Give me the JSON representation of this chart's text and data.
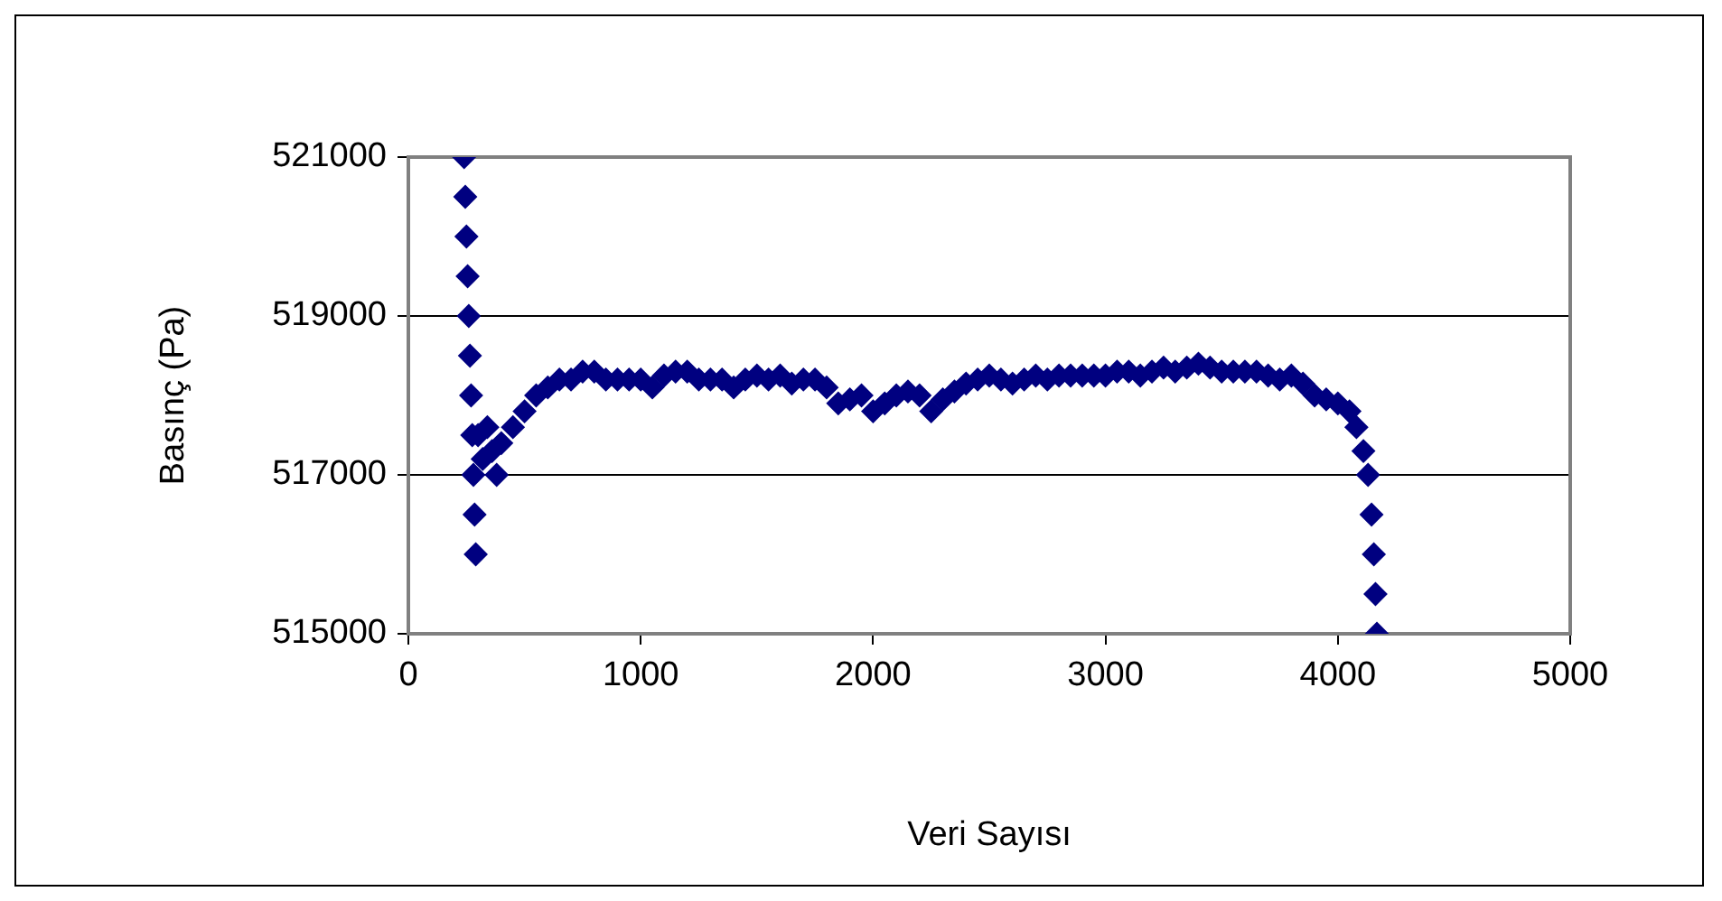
{
  "chart_data": {
    "type": "scatter",
    "xlabel": "Veri Sayısı",
    "ylabel": "Basınç (Pa)",
    "xlim": [
      0,
      5000
    ],
    "xticks": [
      0,
      1000,
      2000,
      3000,
      4000,
      5000
    ],
    "ylim": [
      515000,
      521000
    ],
    "yticks": [
      515000,
      517000,
      519000,
      521000
    ],
    "grid": "y",
    "legend": false,
    "marker": "diamond",
    "series": [
      {
        "color": "#000080",
        "x": [
          240,
          245,
          250,
          255,
          260,
          265,
          270,
          275,
          280,
          285,
          290,
          300,
          320,
          340,
          360,
          380,
          400,
          450,
          500,
          550,
          600,
          650,
          700,
          750,
          800,
          850,
          900,
          950,
          1000,
          1050,
          1100,
          1150,
          1200,
          1250,
          1300,
          1350,
          1400,
          1450,
          1500,
          1550,
          1600,
          1650,
          1700,
          1750,
          1800,
          1850,
          1900,
          1950,
          2000,
          2050,
          2100,
          2150,
          2200,
          2250,
          2300,
          2350,
          2400,
          2450,
          2500,
          2550,
          2600,
          2650,
          2700,
          2750,
          2800,
          2850,
          2900,
          2950,
          3000,
          3050,
          3100,
          3150,
          3200,
          3250,
          3300,
          3350,
          3400,
          3450,
          3500,
          3550,
          3600,
          3650,
          3700,
          3750,
          3800,
          3850,
          3900,
          3950,
          4000,
          4050,
          4080,
          4110,
          4130,
          4145,
          4155,
          4162,
          4168
        ],
        "values": [
          521000,
          520500,
          520000,
          519500,
          519000,
          518500,
          518000,
          517500,
          517000,
          516500,
          516000,
          517500,
          517200,
          517600,
          517300,
          517000,
          517400,
          517600,
          517800,
          518000,
          518100,
          518200,
          518200,
          518300,
          518300,
          518200,
          518200,
          518200,
          518200,
          518100,
          518250,
          518300,
          518300,
          518200,
          518200,
          518200,
          518100,
          518200,
          518250,
          518200,
          518250,
          518150,
          518200,
          518200,
          518100,
          517900,
          517950,
          518000,
          517800,
          517900,
          518000,
          518050,
          518000,
          517800,
          517950,
          518050,
          518150,
          518200,
          518250,
          518200,
          518150,
          518200,
          518250,
          518200,
          518250,
          518250,
          518250,
          518250,
          518250,
          518300,
          518300,
          518250,
          518300,
          518350,
          518300,
          518350,
          518400,
          518350,
          518300,
          518300,
          518300,
          518300,
          518250,
          518200,
          518250,
          518150,
          518000,
          517950,
          517900,
          517800,
          517600,
          517300,
          517000,
          516500,
          516000,
          515500,
          515000
        ]
      }
    ]
  }
}
